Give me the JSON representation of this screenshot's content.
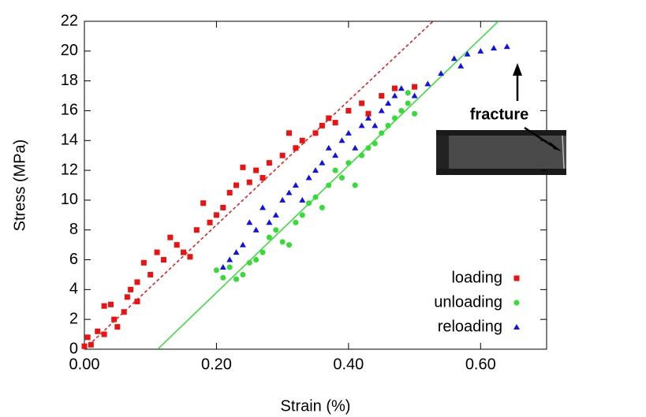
{
  "chart_data": {
    "type": "scatter",
    "x_label": "Strain (%)",
    "y_label": "Stress (MPa)",
    "annotation": "fracture",
    "xlim": [
      0,
      0.7
    ],
    "ylim": [
      0,
      22
    ],
    "xticks": [
      {
        "value": 0,
        "label": "0.00"
      },
      {
        "value": 0.2,
        "label": "0.20"
      },
      {
        "value": 0.4,
        "label": "0.40"
      },
      {
        "value": 0.6,
        "label": "0.60"
      }
    ],
    "yticks": [
      0,
      2,
      4,
      6,
      8,
      10,
      12,
      14,
      16,
      18,
      20,
      22
    ],
    "legend": "bottom-right",
    "series": [
      {
        "name": "loading",
        "color": "#ee1111",
        "marker": "square",
        "x": [
          0.0,
          0.005,
          0.01,
          0.02,
          0.03,
          0.03,
          0.04,
          0.045,
          0.05,
          0.06,
          0.065,
          0.07,
          0.08,
          0.08,
          0.09,
          0.1,
          0.11,
          0.12,
          0.13,
          0.14,
          0.15,
          0.16,
          0.17,
          0.18,
          0.19,
          0.2,
          0.21,
          0.22,
          0.23,
          0.24,
          0.25,
          0.26,
          0.27,
          0.28,
          0.3,
          0.31,
          0.32,
          0.33,
          0.35,
          0.36,
          0.37,
          0.38,
          0.4,
          0.42,
          0.43,
          0.45,
          0.47,
          0.5
        ],
        "values": [
          0.2,
          0.8,
          0.3,
          1.2,
          1.0,
          2.9,
          3.0,
          2.0,
          1.5,
          2.5,
          3.5,
          4.0,
          3.2,
          4.5,
          5.8,
          5.0,
          6.5,
          6.0,
          7.5,
          7.0,
          6.5,
          6.2,
          8.0,
          9.8,
          8.5,
          9.0,
          9.5,
          10.5,
          11.0,
          12.2,
          11.2,
          12.0,
          11.5,
          12.5,
          13.0,
          14.5,
          13.5,
          14.0,
          14.5,
          15.0,
          15.5,
          15.2,
          16.0,
          16.5,
          15.8,
          17.0,
          17.5,
          17.6
        ]
      },
      {
        "name": "unloading",
        "color": "#33dd33",
        "marker": "circle",
        "x": [
          0.2,
          0.21,
          0.22,
          0.23,
          0.24,
          0.25,
          0.26,
          0.27,
          0.28,
          0.29,
          0.3,
          0.31,
          0.32,
          0.33,
          0.34,
          0.35,
          0.36,
          0.37,
          0.38,
          0.39,
          0.4,
          0.41,
          0.42,
          0.43,
          0.44,
          0.45,
          0.46,
          0.47,
          0.48,
          0.49,
          0.5,
          0.49
        ],
        "values": [
          5.3,
          4.8,
          5.5,
          4.7,
          5.0,
          5.8,
          6.0,
          6.5,
          7.5,
          8.0,
          7.2,
          7.0,
          8.5,
          9.0,
          9.8,
          10.2,
          9.5,
          11.0,
          12.0,
          11.5,
          12.5,
          11.0,
          13.0,
          13.5,
          13.8,
          14.5,
          15.0,
          15.5,
          16.0,
          16.5,
          15.8,
          17.2
        ]
      },
      {
        "name": "reloading",
        "color": "#1111ee",
        "marker": "triangle",
        "x": [
          0.21,
          0.22,
          0.23,
          0.24,
          0.25,
          0.26,
          0.27,
          0.28,
          0.29,
          0.3,
          0.31,
          0.32,
          0.33,
          0.34,
          0.35,
          0.36,
          0.37,
          0.38,
          0.39,
          0.4,
          0.41,
          0.42,
          0.43,
          0.44,
          0.45,
          0.46,
          0.47,
          0.48,
          0.5,
          0.52,
          0.54,
          0.56,
          0.58,
          0.6,
          0.62,
          0.64,
          0.57
        ],
        "values": [
          5.5,
          6.0,
          6.5,
          7.0,
          8.5,
          8.0,
          9.5,
          8.5,
          9.0,
          10.0,
          10.5,
          11.0,
          10.0,
          11.5,
          12.0,
          12.5,
          13.5,
          13.0,
          14.0,
          14.5,
          13.5,
          15.0,
          15.5,
          15.0,
          16.0,
          16.5,
          17.0,
          17.5,
          17.0,
          17.8,
          18.5,
          19.5,
          19.8,
          20.0,
          20.2,
          20.3,
          19.0
        ]
      }
    ],
    "fit_lines": [
      {
        "color": "#ee1111",
        "style": "dashed",
        "x": [
          0,
          0.528
        ],
        "values": [
          0,
          22
        ]
      },
      {
        "color": "#33dd33",
        "style": "solid",
        "x": [
          0.111,
          0.627
        ],
        "values": [
          0,
          22
        ]
      }
    ]
  }
}
